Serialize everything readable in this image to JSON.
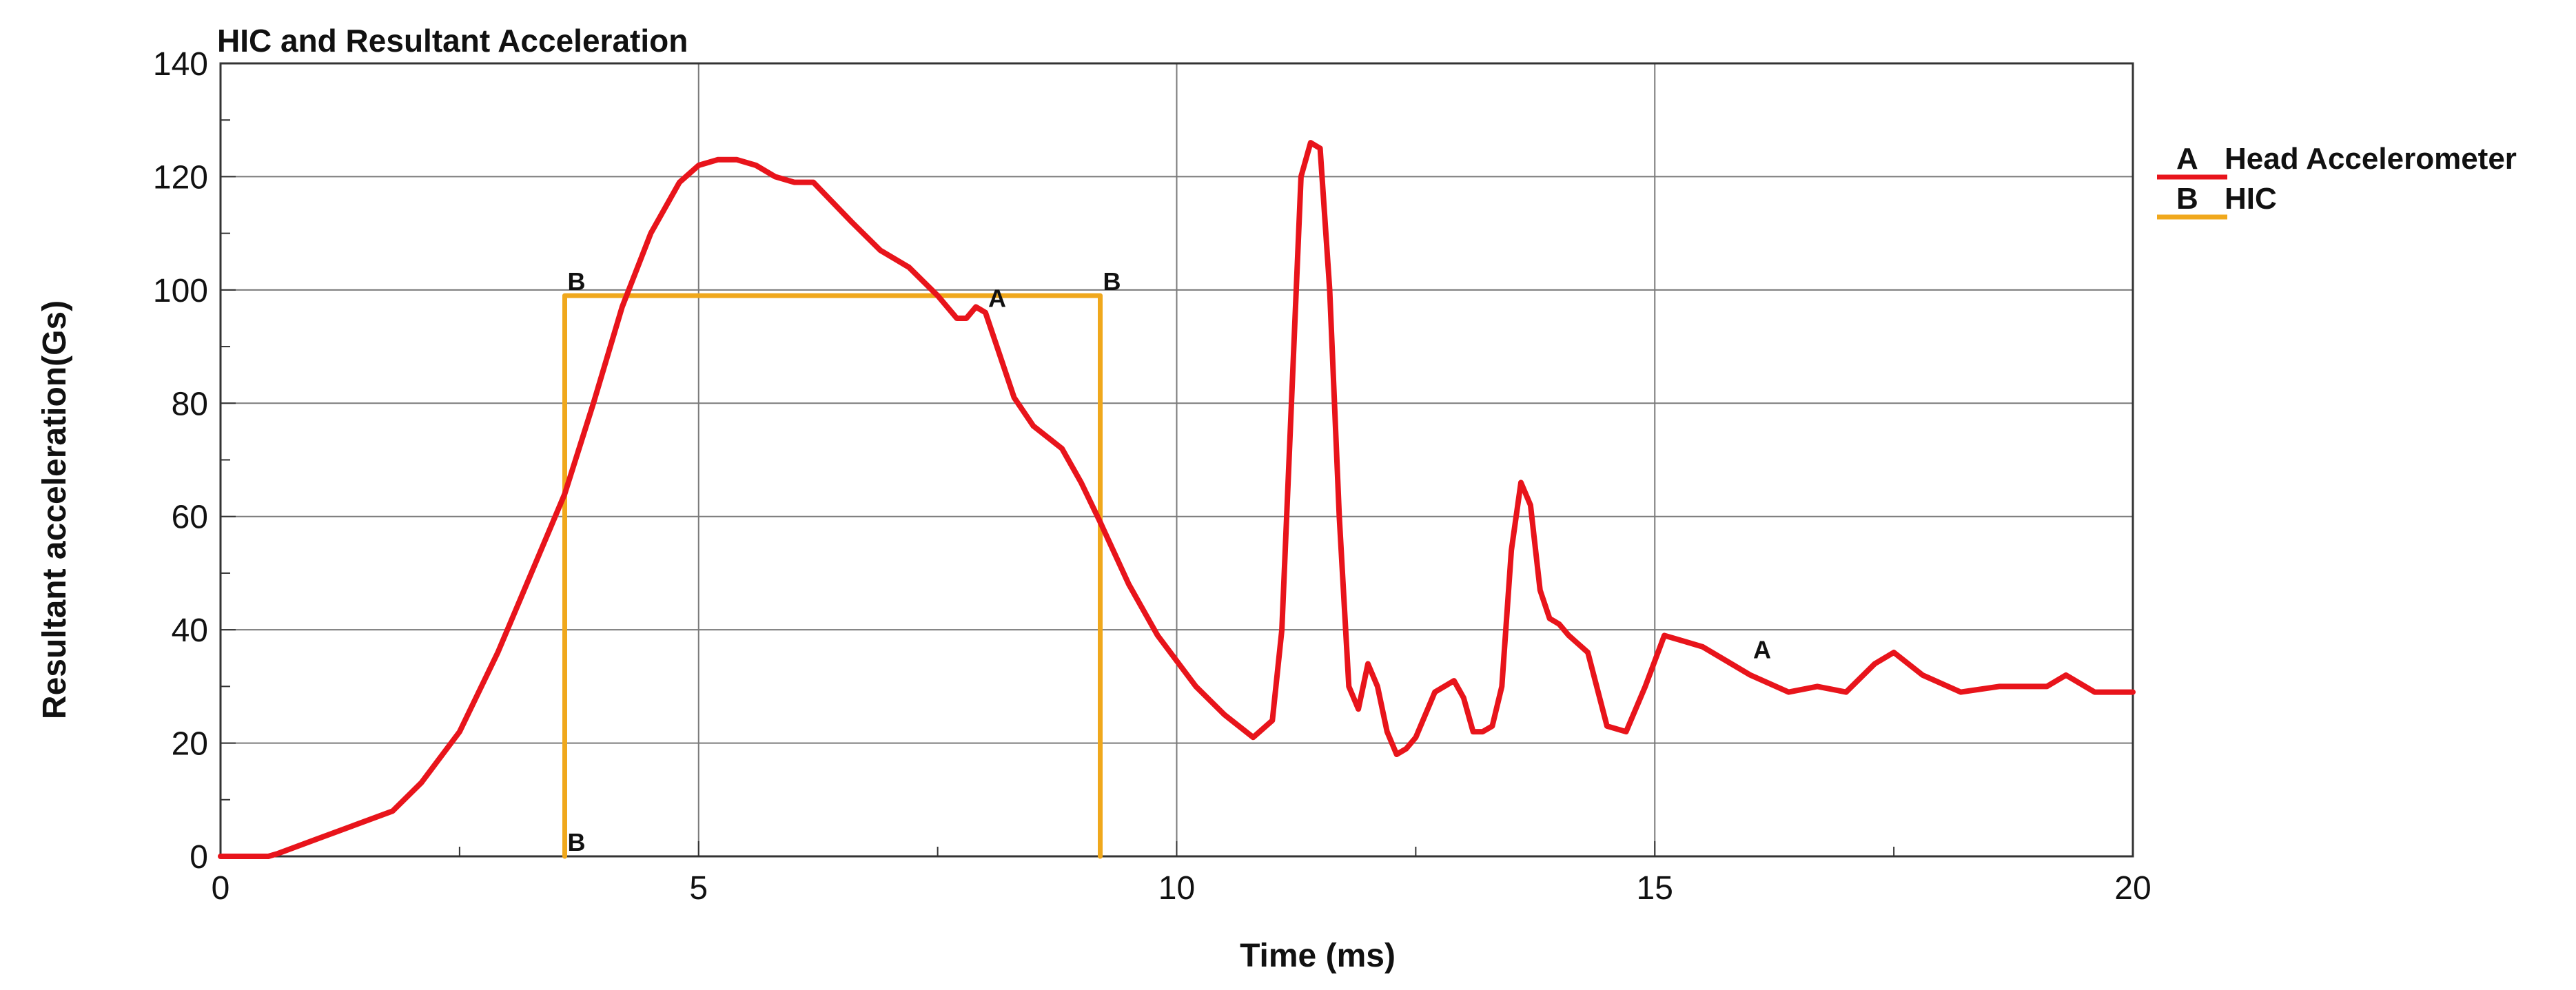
{
  "chart_data": {
    "type": "line",
    "title": "HIC and Resultant Acceleration",
    "xlabel": "Time (ms)",
    "ylabel": "Resultant acceleration(Gs)",
    "xlim": [
      0,
      20
    ],
    "ylim": [
      0,
      140
    ],
    "xticks": [
      0,
      5,
      10,
      15,
      20
    ],
    "yticks": [
      0,
      20,
      40,
      60,
      80,
      100,
      120,
      140
    ],
    "grid": true,
    "legend_position": "right",
    "series": [
      {
        "name": "Head Accelerometer",
        "marker": "A",
        "color": "#e8141b",
        "x": [
          0,
          0.5,
          0.6,
          1.0,
          1.4,
          1.8,
          2.1,
          2.5,
          2.9,
          3.3,
          3.6,
          3.9,
          4.2,
          4.5,
          4.8,
          5.0,
          5.2,
          5.4,
          5.6,
          5.8,
          6.0,
          6.2,
          6.6,
          6.9,
          7.2,
          7.5,
          7.7,
          7.8,
          7.9,
          8.0,
          8.1,
          8.3,
          8.5,
          8.8,
          9.0,
          9.2,
          9.5,
          9.8,
          10.2,
          10.5,
          10.8,
          11.0,
          11.1,
          11.2,
          11.3,
          11.4,
          11.5,
          11.6,
          11.7,
          11.8,
          11.9,
          12.0,
          12.1,
          12.2,
          12.3,
          12.4,
          12.5,
          12.7,
          12.9,
          13.0,
          13.1,
          13.2,
          13.3,
          13.4,
          13.5,
          13.6,
          13.7,
          13.8,
          13.9,
          14.0,
          14.1,
          14.3,
          14.5,
          14.7,
          14.9,
          15.1,
          15.3,
          15.5,
          15.8,
          16.0,
          16.4,
          16.7,
          17.0,
          17.3,
          17.5,
          17.8,
          18.2,
          18.6,
          18.9,
          19.1,
          19.3,
          19.6,
          20.0
        ],
        "y": [
          0,
          0,
          0.5,
          3,
          5.5,
          8,
          13,
          22,
          36,
          52,
          64,
          80,
          97,
          110,
          119,
          122,
          123,
          123,
          122,
          120,
          119,
          119,
          112,
          107,
          104,
          99,
          95,
          95,
          97,
          96,
          91,
          81,
          76,
          72,
          66,
          59,
          48,
          39,
          30,
          25,
          21,
          24,
          40,
          80,
          120,
          126,
          125,
          100,
          60,
          30,
          26,
          34,
          30,
          22,
          18,
          19,
          21,
          29,
          31,
          28,
          22,
          22,
          23,
          30,
          54,
          66,
          62,
          47,
          42,
          41,
          39,
          36,
          23,
          22,
          30,
          39,
          38,
          37,
          34,
          32,
          29,
          30,
          29,
          34,
          36,
          32,
          29,
          30,
          30,
          30,
          32,
          29,
          29
        ]
      },
      {
        "name": "HIC",
        "marker": "B",
        "color": "#f0a81c",
        "x": [
          3.6,
          3.6,
          9.2,
          9.2
        ],
        "y": [
          0,
          99,
          99,
          0
        ]
      }
    ],
    "annotations": [
      {
        "text": "B",
        "x": 3.6,
        "y": 99
      },
      {
        "text": "B",
        "x": 9.2,
        "y": 99
      },
      {
        "text": "B",
        "x": 3.6,
        "y": 0
      },
      {
        "text": "A",
        "x": 8.0,
        "y": 96
      },
      {
        "text": "A",
        "x": 16.0,
        "y": 34
      }
    ]
  }
}
